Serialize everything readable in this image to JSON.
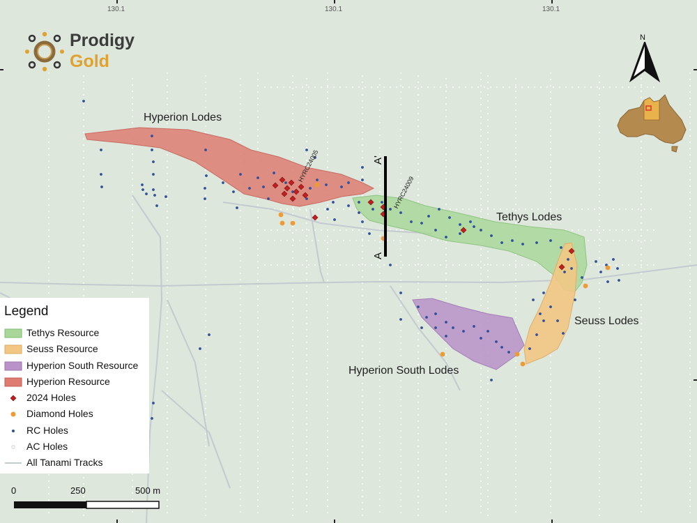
{
  "coords": {
    "ticks": [
      "130.1",
      "130.1",
      "130.1"
    ]
  },
  "logo": {
    "word1": "Prodigy",
    "word2": "Gold"
  },
  "north": {
    "label": "N"
  },
  "map_labels": {
    "hyperion": "Hyperion Lodes",
    "tethys": "Tethys Lodes",
    "seuss": "Seuss Lodes",
    "hyperion_south": "Hyperion South Lodes"
  },
  "holes": {
    "hyrc24005": "HYRC24005",
    "hyrc24009": "HYRC24009"
  },
  "section": {
    "a": "A",
    "a_prime": "A'"
  },
  "legend": {
    "title": "Legend",
    "items": [
      {
        "label": "Tethys Resource",
        "color": "#a9d79a"
      },
      {
        "label": "Seuss Resource",
        "color": "#f2c783"
      },
      {
        "label": "Hyperion South Resource",
        "color": "#b992c9"
      },
      {
        "label": "Hyperion Resource",
        "color": "#de7c72"
      },
      {
        "label": "2024 Holes",
        "color": "#c0201f"
      },
      {
        "label": "Diamond Holes",
        "color": "#ee9a35"
      },
      {
        "label": "RC Holes",
        "color": "#2f4f9a"
      },
      {
        "label": "AC Holes",
        "color": "#ffffff"
      },
      {
        "label": "All Tanami Tracks",
        "color": "#c9ced3"
      }
    ]
  },
  "scalebar": {
    "labels": [
      "0",
      "250",
      "500 m"
    ]
  }
}
